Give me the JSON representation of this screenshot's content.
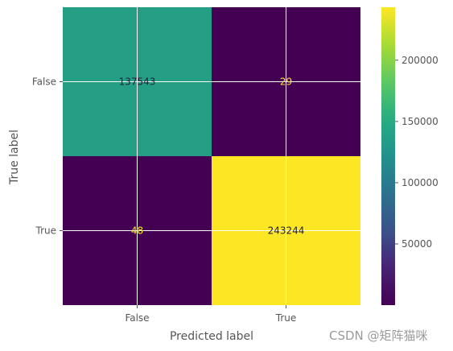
{
  "chart_data": {
    "type": "heatmap",
    "xlabel": "Predicted label",
    "ylabel": "True label",
    "x_categories": [
      "False",
      "True"
    ],
    "y_categories": [
      "False",
      "True"
    ],
    "matrix": [
      [
        137543,
        29
      ],
      [
        48,
        243244
      ]
    ],
    "colormap": "viridis",
    "grid": true,
    "colorbar": {
      "ticks": [
        50000,
        100000,
        150000,
        200000
      ],
      "tick_labels": [
        "50000",
        "100000",
        "150000",
        "200000"
      ],
      "min": 29,
      "max": 243244
    }
  },
  "watermark": "CSDN @矩阵猫咪"
}
